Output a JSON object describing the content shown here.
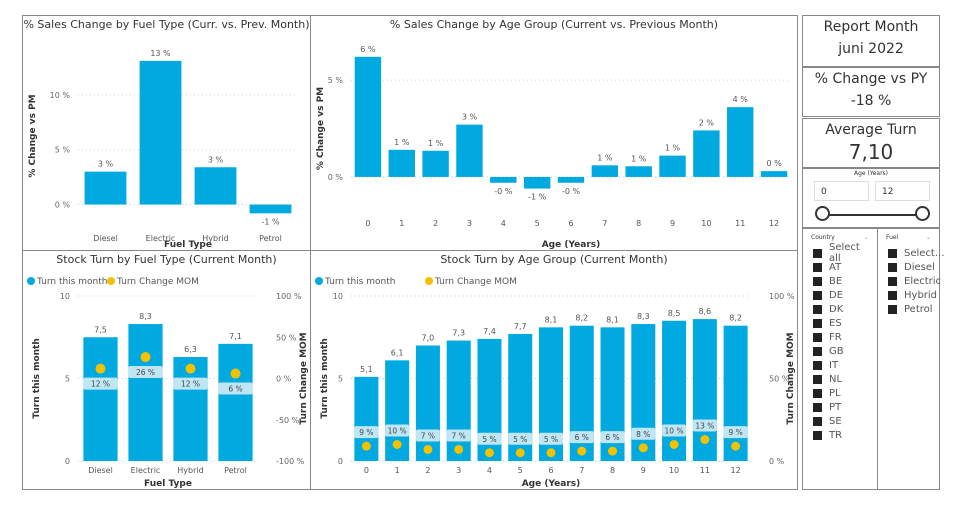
{
  "chart_data": [
    {
      "id": "c1",
      "type": "bar",
      "title": "% Sales Change by Fuel Type (Curr. vs. Prev. Month)",
      "xlabel": "Fuel Type",
      "ylabel": "% Change vs PM",
      "categories": [
        "Diesel",
        "Electric",
        "Hybrid",
        "Petrol"
      ],
      "values": [
        3.0,
        13.1,
        3.4,
        -0.8
      ],
      "data_labels": [
        "3 %",
        "13 %",
        "3 %",
        "-1 %"
      ],
      "yticks": [
        "0 %",
        "5 %",
        "10 %"
      ],
      "ylim": [
        -1.5,
        14
      ],
      "color": "#00A9E0"
    },
    {
      "id": "c2",
      "type": "bar",
      "title": "% Sales Change by Age Group (Current vs. Previous Month)",
      "xlabel": "Age (Years)",
      "ylabel": "% Change vs PM",
      "categories": [
        "0",
        "1",
        "2",
        "3",
        "4",
        "5",
        "6",
        "7",
        "8",
        "9",
        "10",
        "11",
        "12"
      ],
      "values": [
        6.2,
        1.4,
        1.35,
        2.7,
        -0.3,
        -0.6,
        -0.3,
        0.6,
        0.55,
        1.1,
        2.4,
        3.6,
        0.3
      ],
      "data_labels": [
        "6 %",
        "1 %",
        "1 %",
        "3 %",
        "-0 %",
        "-1 %",
        "-0 %",
        "1 %",
        "1 %",
        "1 %",
        "2 %",
        "4 %",
        "0 %"
      ],
      "yticks": [
        "0 %",
        "5 %"
      ],
      "ylim": [
        -1.5,
        6.5
      ],
      "color": "#00A9E0"
    },
    {
      "id": "c3",
      "type": "bar+scatter",
      "title": "Stock Turn by Fuel Type (Current Month)",
      "xlabel": "Fuel Type",
      "ylabel": "Turn this month",
      "y2label": "Turn Change MOM",
      "legend": [
        "Turn this month",
        "Turn Change MOM"
      ],
      "categories": [
        "Diesel",
        "Electric",
        "Hybrid",
        "Petrol"
      ],
      "values": [
        7.5,
        8.3,
        6.3,
        7.1
      ],
      "data_labels": [
        "7,5",
        "8,3",
        "6,3",
        "7,1"
      ],
      "mom": [
        12,
        26,
        12,
        6
      ],
      "mom_labels": [
        "12 %",
        "26 %",
        "12 %",
        "6 %"
      ],
      "yticks": [
        "0",
        "5",
        "10"
      ],
      "y2ticks": [
        "-100 %",
        "-50 %",
        "0 %",
        "50 %",
        "100 %"
      ],
      "ylim": [
        0,
        10
      ],
      "y2lim": [
        -100,
        100
      ],
      "color": "#00A9E0",
      "dot_color": "#F2C200"
    },
    {
      "id": "c4",
      "type": "bar+scatter",
      "title": "Stock Turn by Age Group (Current Month)",
      "xlabel": "Age (Years)",
      "ylabel": "Turn this month",
      "y2label": "Turn Change MOM",
      "legend": [
        "Turn this month",
        "Turn Change MOM"
      ],
      "categories": [
        "0",
        "1",
        "2",
        "3",
        "4",
        "5",
        "6",
        "7",
        "8",
        "9",
        "10",
        "11",
        "12"
      ],
      "values": [
        5.1,
        6.1,
        7.0,
        7.3,
        7.4,
        7.7,
        8.1,
        8.2,
        8.1,
        8.3,
        8.5,
        8.6,
        8.2
      ],
      "data_labels": [
        "5,1",
        "6,1",
        "7,0",
        "7,3",
        "7,4",
        "7,7",
        "8,1",
        "8,2",
        "8,1",
        "8,3",
        "8,5",
        "8,6",
        "8,2"
      ],
      "mom": [
        9,
        10,
        7,
        7,
        5,
        5,
        5,
        6,
        6,
        8,
        10,
        13,
        9
      ],
      "mom_labels": [
        "9 %",
        "10 %",
        "7 %",
        "7 %",
        "5 %",
        "5 %",
        "5 %",
        "6 %",
        "6 %",
        "8 %",
        "10 %",
        "13 %",
        "9 %"
      ],
      "yticks": [
        "0",
        "5",
        "10"
      ],
      "y2ticks": [
        "0 %",
        "50 %",
        "100 %"
      ],
      "ylim": [
        0,
        10
      ],
      "y2lim": [
        0,
        100
      ],
      "color": "#00A9E0",
      "dot_color": "#F2C200"
    }
  ],
  "cards": {
    "report_month_label": "Report Month",
    "report_month_value": "juni 2022",
    "change_py_label": "% Change vs PY",
    "change_py_value": "-18 %",
    "avg_turn_label": "Average Turn",
    "avg_turn_value": "7,10"
  },
  "age_slicer": {
    "title": "Age (Years)",
    "min": "0",
    "max": "12"
  },
  "country_slicer": {
    "title": "Country",
    "items": [
      "Select all",
      "AT",
      "BE",
      "DE",
      "DK",
      "ES",
      "FR",
      "GB",
      "IT",
      "NL",
      "PL",
      "PT",
      "SE",
      "TR"
    ]
  },
  "fuel_slicer": {
    "title": "Fuel",
    "items": [
      "Select...",
      "Diesel",
      "Electric",
      "Hybrid",
      "Petrol"
    ]
  }
}
